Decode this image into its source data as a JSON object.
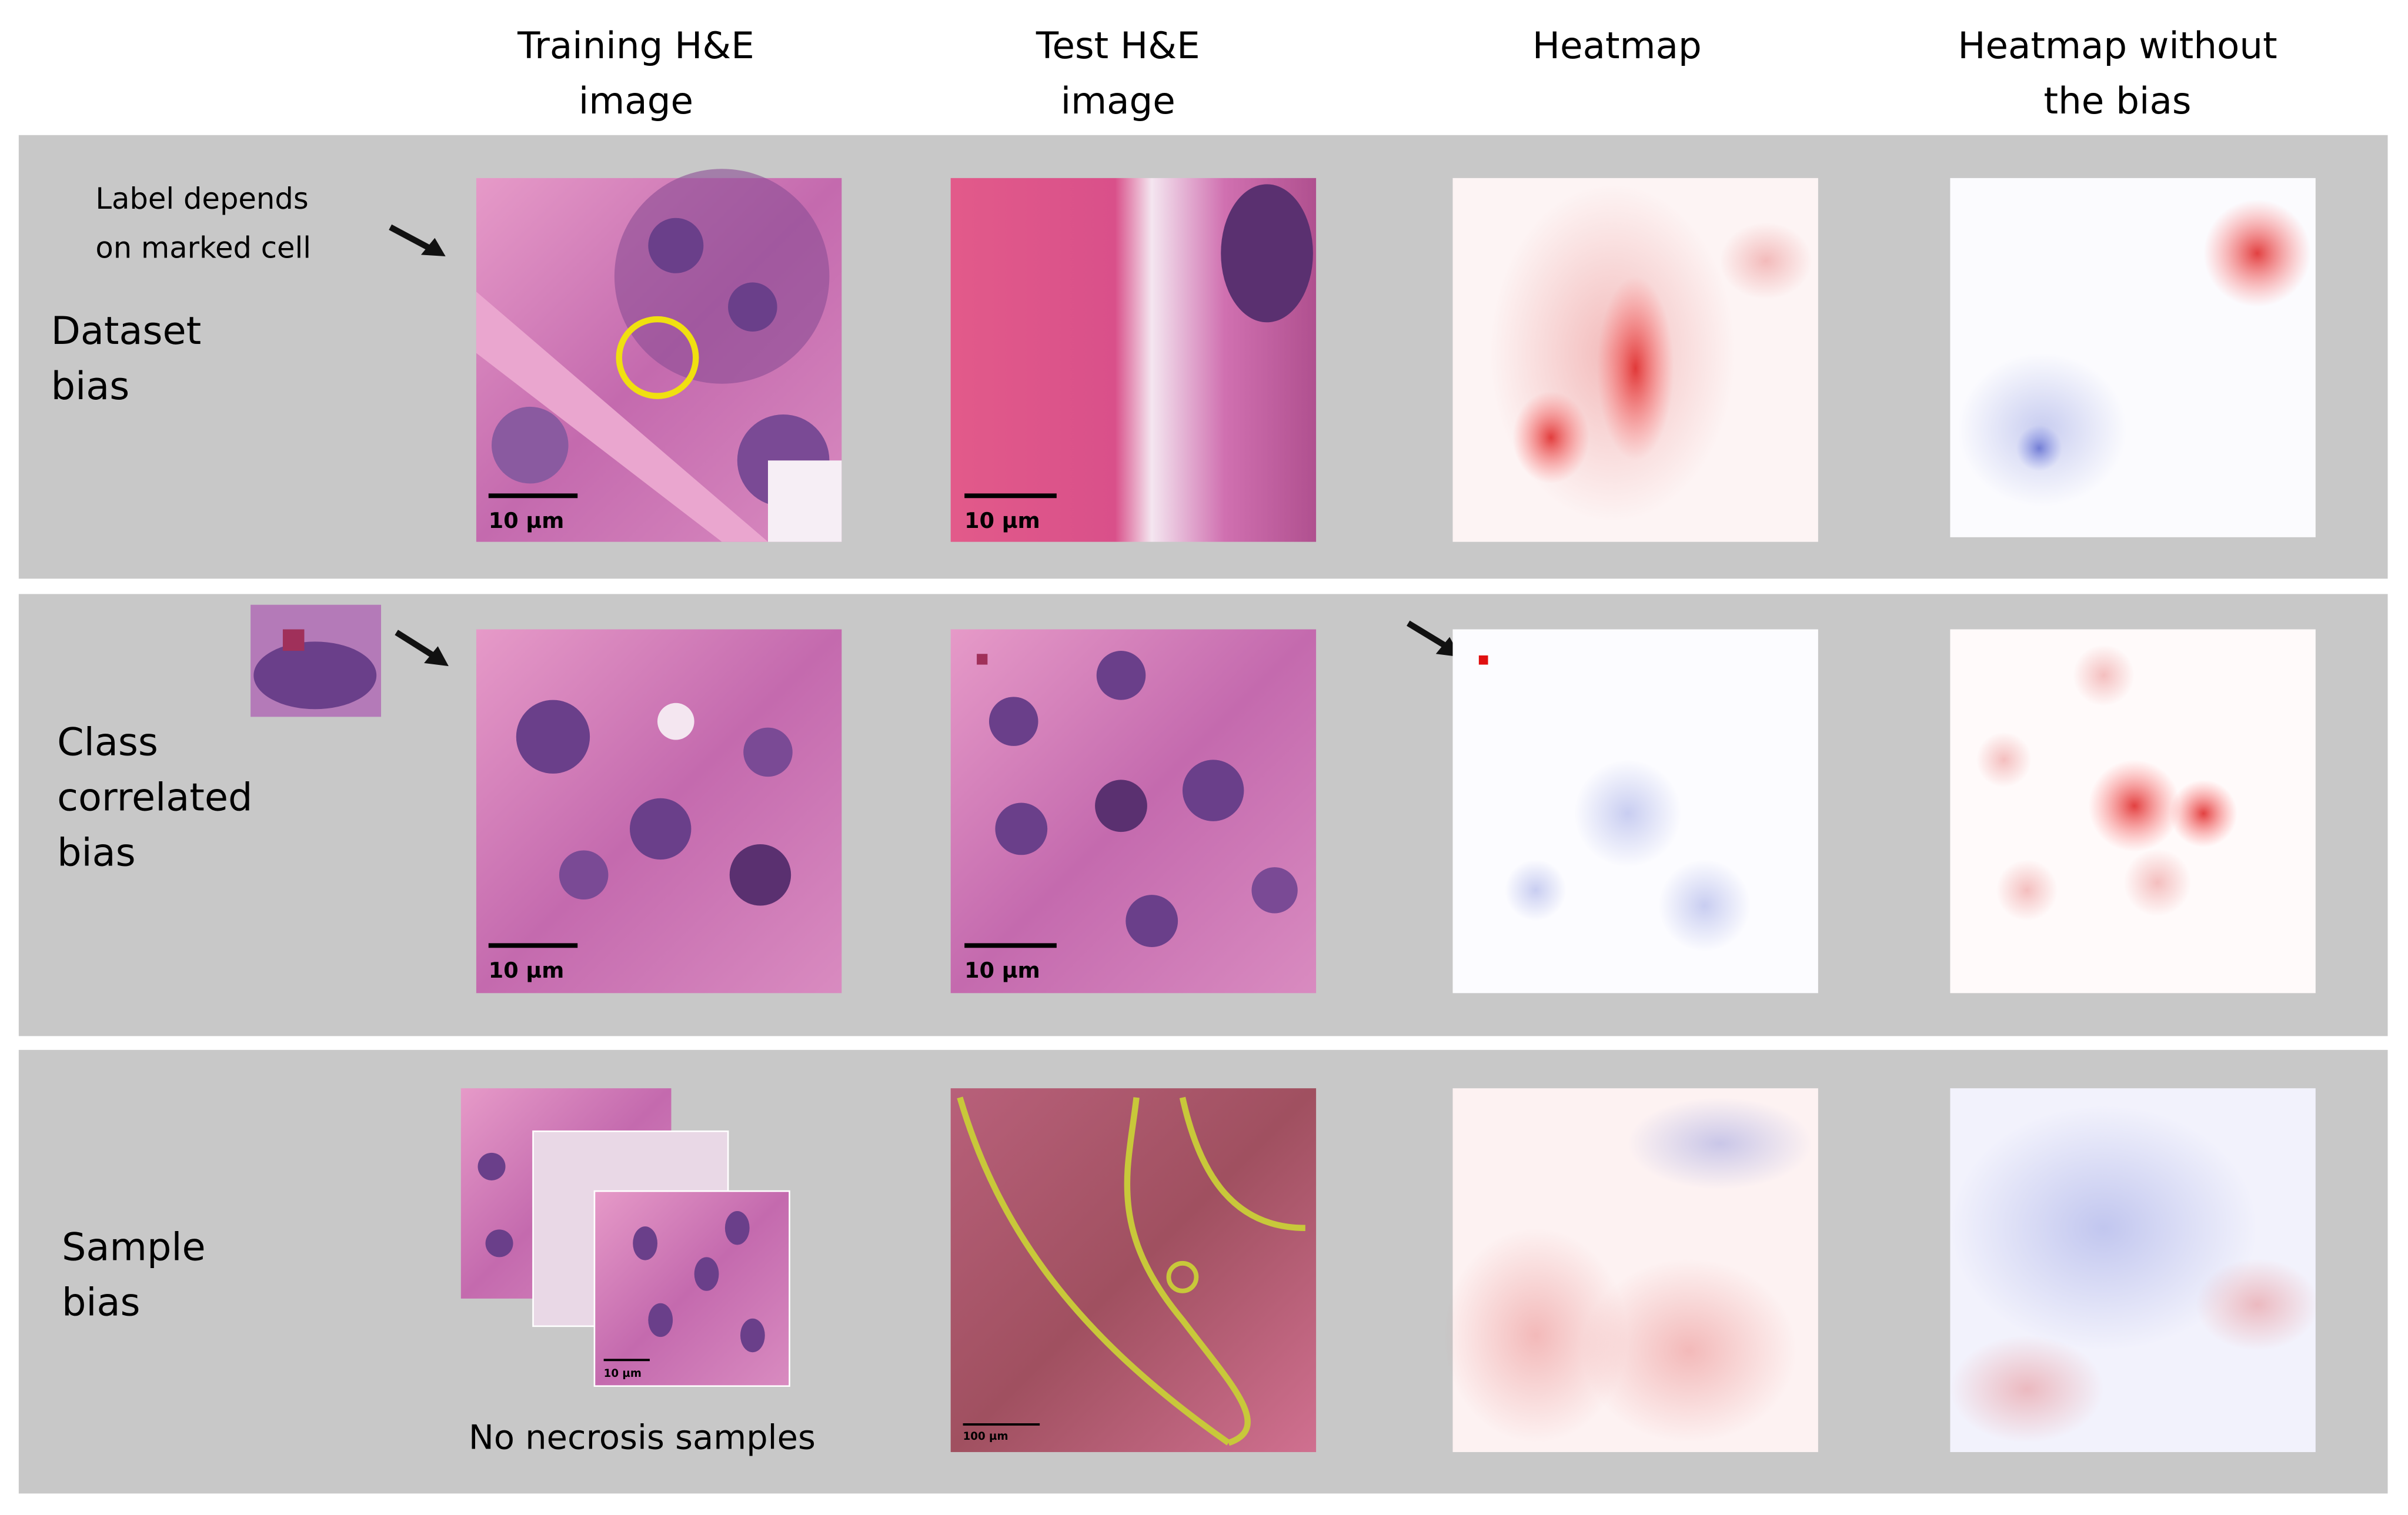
{
  "headers": [
    {
      "lines": [
        "Training H&E",
        "image"
      ]
    },
    {
      "lines": [
        "Test H&E",
        "image"
      ]
    },
    {
      "lines": [
        "Heatmap"
      ]
    },
    {
      "lines": [
        "Heatmap without",
        "the bias"
      ]
    }
  ],
  "rows": [
    {
      "label_lines": [
        "Dataset",
        "bias"
      ],
      "annotation_lines": [
        "Label depends",
        "on marked cell"
      ],
      "scale_bars": [
        "10 µm",
        "10 µm"
      ]
    },
    {
      "label_lines": [
        "Class",
        "correlated",
        "bias"
      ],
      "scale_bars": [
        "10 µm",
        "10 µm"
      ]
    },
    {
      "label_lines": [
        "Sample",
        "bias"
      ],
      "scale_bars": [
        "10 µm",
        "100 µm"
      ],
      "caption": "No necrosis samples"
    }
  ]
}
